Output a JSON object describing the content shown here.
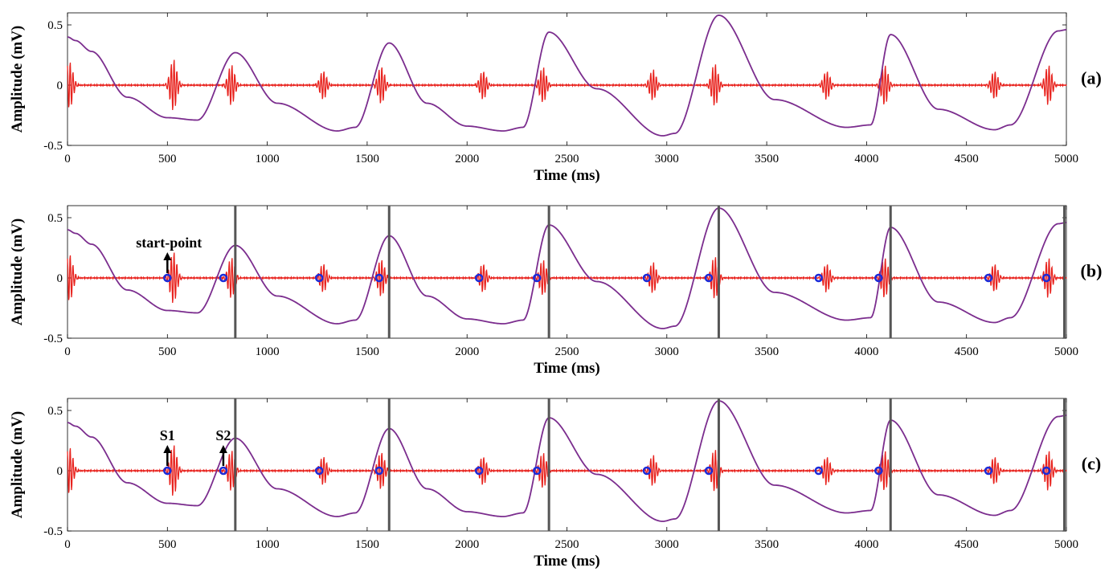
{
  "chart_data": [
    {
      "type": "line",
      "panel_label": "(a)",
      "xlabel": "Time (ms)",
      "ylabel": "Amplitude  (mV)",
      "xlim": [
        0,
        5000
      ],
      "ylim": [
        -0.5,
        0.6
      ],
      "xticks": [
        0,
        500,
        1000,
        1500,
        2000,
        2500,
        3000,
        3500,
        4000,
        4500,
        5000
      ],
      "yticks": [
        -0.5,
        0,
        0.5
      ],
      "ytick_labels": [
        "-0.5",
        "0",
        "0.5"
      ],
      "grid": false,
      "colors": {
        "pcg": "#e8231e",
        "ecg": "#7b2d8e"
      },
      "series": [
        {
          "name": "",
          "color": "#7b2d8e",
          "x": [
            0,
            40,
            120,
            300,
            500,
            650,
            840,
            1050,
            1350,
            1440,
            1610,
            1800,
            2000,
            2180,
            2280,
            2410,
            2650,
            2980,
            3040,
            3260,
            3540,
            3900,
            4020,
            4120,
            4360,
            4640,
            4720,
            4960,
            5000
          ],
          "values": [
            0.4,
            0.37,
            0.28,
            -0.1,
            -0.27,
            -0.29,
            0.27,
            -0.15,
            -0.38,
            -0.35,
            0.35,
            -0.15,
            -0.34,
            -0.38,
            -0.35,
            0.44,
            -0.03,
            -0.42,
            -0.4,
            0.58,
            -0.12,
            -0.35,
            -0.33,
            0.42,
            -0.2,
            -0.37,
            -0.33,
            0.45,
            0.46
          ]
        },
        {
          "name": "",
          "color": "#e8231e",
          "bursts": [
            {
              "t": 10,
              "amp": 0.2
            },
            {
              "t": 530,
              "amp": 0.22
            },
            {
              "t": 820,
              "amp": 0.17
            },
            {
              "t": 1280,
              "amp": 0.12
            },
            {
              "t": 1570,
              "amp": 0.16
            },
            {
              "t": 2080,
              "amp": 0.12
            },
            {
              "t": 2380,
              "amp": 0.15
            },
            {
              "t": 2930,
              "amp": 0.13
            },
            {
              "t": 3240,
              "amp": 0.18
            },
            {
              "t": 3800,
              "amp": 0.12
            },
            {
              "t": 4090,
              "amp": 0.17
            },
            {
              "t": 4640,
              "amp": 0.12
            },
            {
              "t": 4910,
              "amp": 0.17
            }
          ]
        }
      ]
    },
    {
      "type": "line",
      "panel_label": "(b)",
      "xlabel": "Time (ms)",
      "ylabel": "Amplitude  (mV)",
      "xlim": [
        0,
        5000
      ],
      "ylim": [
        -0.5,
        0.6
      ],
      "xticks": [
        0,
        500,
        1000,
        1500,
        2000,
        2500,
        3000,
        3500,
        4000,
        4500,
        5000
      ],
      "yticks": [
        -0.5,
        0,
        0.5
      ],
      "ytick_labels": [
        "-0.5",
        "0",
        "0.5"
      ],
      "grid": false,
      "vertical_lines_ms": [
        840,
        1610,
        2410,
        3260,
        4120,
        4990
      ],
      "markers_ms": [
        500,
        780,
        1260,
        1560,
        2060,
        2350,
        2900,
        3210,
        3760,
        4060,
        4610,
        4900
      ],
      "annotations": [
        {
          "text": "start-point",
          "x_ms": 500
        }
      ]
    },
    {
      "type": "line",
      "panel_label": "(c)",
      "xlabel": "Time (ms)",
      "ylabel": "Amplitude  (mV)",
      "xlim": [
        0,
        5000
      ],
      "ylim": [
        -0.5,
        0.6
      ],
      "xticks": [
        0,
        500,
        1000,
        1500,
        2000,
        2500,
        3000,
        3500,
        4000,
        4500,
        5000
      ],
      "yticks": [
        -0.5,
        0,
        0.5
      ],
      "ytick_labels": [
        "-0.5",
        "0",
        "0.5"
      ],
      "grid": false,
      "vertical_lines_ms": [
        840,
        1610,
        2410,
        3260,
        4120,
        4990
      ],
      "markers_ms": [
        500,
        780,
        1260,
        1560,
        2060,
        2350,
        2900,
        3210,
        3760,
        4060,
        4610,
        4900
      ],
      "annotations": [
        {
          "text": "S1",
          "x_ms": 500
        },
        {
          "text": "S2",
          "x_ms": 780
        }
      ]
    }
  ]
}
